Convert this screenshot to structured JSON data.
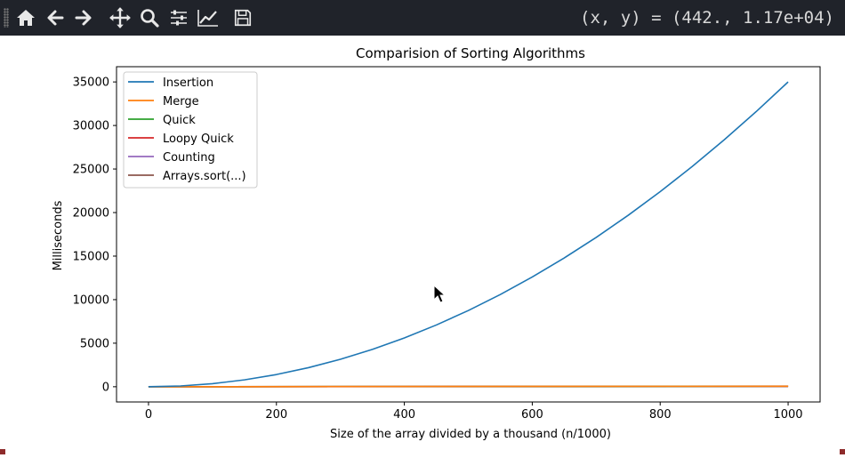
{
  "toolbar": {
    "buttons": [
      {
        "name": "home-icon",
        "label": "Home"
      },
      {
        "name": "back-arrow-icon",
        "label": "Back"
      },
      {
        "name": "forward-arrow-icon",
        "label": "Forward"
      },
      {
        "name": "pan-icon",
        "label": "Pan"
      },
      {
        "name": "zoom-icon",
        "label": "Zoom"
      },
      {
        "name": "subplots-icon",
        "label": "Configure subplots"
      },
      {
        "name": "edit-curves-icon",
        "label": "Edit curves"
      },
      {
        "name": "save-icon",
        "label": "Save"
      }
    ],
    "coordinates": "(x, y) = (442., 1.17e+04)"
  },
  "chart_data": {
    "type": "line",
    "title": "Comparision of Sorting Algorithms",
    "xlabel": "Size of the array divided by a thousand (n/1000)",
    "ylabel": "Milliseconds",
    "xlim": [
      -50,
      1050
    ],
    "ylim": [
      -1750,
      36750
    ],
    "xticks": [
      0,
      200,
      400,
      600,
      800,
      1000
    ],
    "yticks": [
      0,
      5000,
      10000,
      15000,
      20000,
      25000,
      30000,
      35000
    ],
    "grid": false,
    "legend_position": "upper-left",
    "series": [
      {
        "name": "Insertion",
        "color": "#1f77b4",
        "x": [
          0,
          50,
          100,
          150,
          200,
          250,
          300,
          350,
          400,
          450,
          500,
          550,
          600,
          650,
          700,
          750,
          800,
          850,
          900,
          950,
          1000
        ],
        "y": [
          0,
          88,
          350,
          790,
          1400,
          2190,
          3150,
          4290,
          5600,
          7090,
          8750,
          10590,
          12600,
          14790,
          17150,
          19690,
          22400,
          25290,
          28350,
          31590,
          35000
        ]
      },
      {
        "name": "Merge",
        "color": "#ff7f0e",
        "x": [
          0,
          1000
        ],
        "y": [
          0,
          60
        ]
      },
      {
        "name": "Quick",
        "color": "#2ca02c",
        "x": [
          0,
          1000
        ],
        "y": [
          0,
          50
        ]
      },
      {
        "name": "Loopy Quick",
        "color": "#d62728",
        "x": [
          0,
          1000
        ],
        "y": [
          0,
          55
        ]
      },
      {
        "name": "Counting",
        "color": "#9467bd",
        "x": [
          0,
          1000
        ],
        "y": [
          0,
          15
        ]
      },
      {
        "name": "Arrays.sort(...)",
        "color": "#8c564b",
        "x": [
          0,
          1000
        ],
        "y": [
          0,
          65
        ]
      }
    ]
  }
}
